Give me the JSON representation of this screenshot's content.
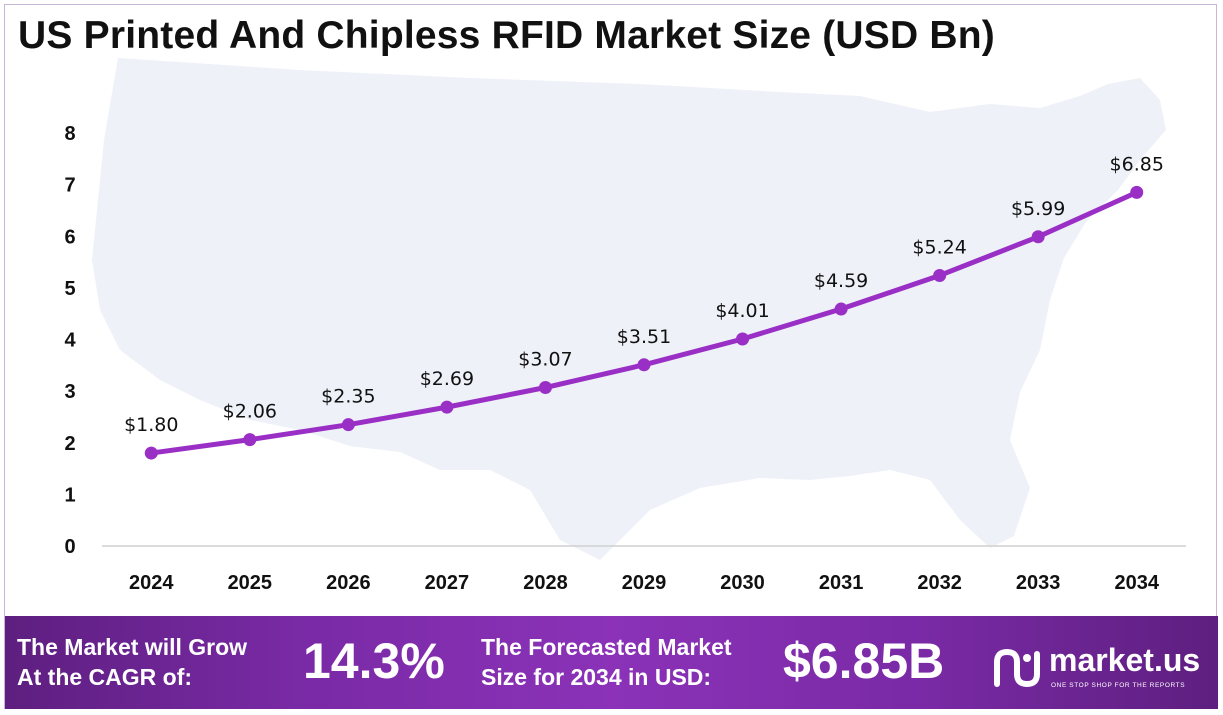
{
  "title": "US Printed And Chipless RFID Market Size (USD Bn)",
  "chart_data": {
    "type": "line",
    "title": "US Printed And Chipless RFID Market Size (USD Bn)",
    "categories": [
      "2024",
      "2025",
      "2026",
      "2027",
      "2028",
      "2029",
      "2030",
      "2031",
      "2032",
      "2033",
      "2034"
    ],
    "values": [
      1.8,
      2.06,
      2.35,
      2.69,
      3.07,
      3.51,
      4.01,
      4.59,
      5.24,
      5.99,
      6.85
    ],
    "data_labels": [
      "$1.80",
      "$2.06",
      "$2.35",
      "$2.69",
      "$3.07",
      "$3.51",
      "$4.01",
      "$4.59",
      "$5.24",
      "$5.99",
      "$6.85"
    ],
    "yticks": [
      "0",
      "1",
      "2",
      "3",
      "4",
      "5",
      "6",
      "7",
      "8"
    ],
    "ylim": [
      0,
      8
    ],
    "xlabel": "",
    "ylabel": "",
    "grid": false,
    "legend": "none",
    "series_color": "#9a2fc6"
  },
  "banner": {
    "cagr_label_line1": "The Market will Grow",
    "cagr_label_line2": "At the CAGR of:",
    "cagr_value": "14.3%",
    "forecast_label_line1": "The Forecasted Market",
    "forecast_label_line2": "Size for 2034 in USD:",
    "forecast_value": "$6.85B",
    "brand_name": "market.us",
    "brand_tagline": "ONE STOP SHOP FOR THE REPORTS"
  }
}
